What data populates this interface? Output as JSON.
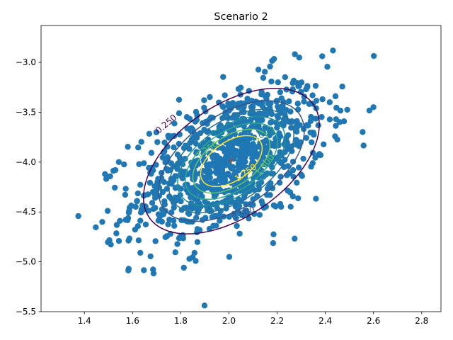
{
  "chart_data": {
    "type": "scatter",
    "title": "Scenario 2",
    "xlabel": "",
    "ylabel": "",
    "xlim": [
      1.22,
      2.88
    ],
    "ylim": [
      -5.5,
      -2.63
    ],
    "x_ticks": [
      1.4,
      1.6,
      1.8,
      2.0,
      2.2,
      2.4,
      2.6,
      2.8
    ],
    "x_tick_labels": [
      "1.4",
      "1.6",
      "1.8",
      "2.0",
      "2.2",
      "2.4",
      "2.6",
      "2.8"
    ],
    "y_ticks": [
      -5.5,
      -5.0,
      -4.5,
      -4.0,
      -3.5,
      -3.0
    ],
    "y_tick_labels": [
      "−5.5",
      "−5.0",
      "−4.5",
      "−4.0",
      "−3.5",
      "−3.0"
    ],
    "grid": false,
    "scatter": {
      "color": "#1f77b4",
      "distribution": {
        "mean": [
          2.0,
          -4.0
        ],
        "std": [
          0.2,
          0.4
        ],
        "correlation": 0.5,
        "count": 1000
      }
    },
    "mean_marker": {
      "x": 2.01,
      "y": -3.99,
      "symbol": "+",
      "color": "#d62728"
    },
    "contours": {
      "center": [
        2.01,
        -3.99
      ],
      "std": [
        0.2,
        0.4
      ],
      "correlation": 0.5,
      "levels": [
        {
          "value": 0.25,
          "label": "0.250",
          "color": "#440154"
        },
        {
          "value": 0.5,
          "label": "0.500",
          "color": "#3b528b"
        },
        {
          "value": 0.75,
          "label": "0.750",
          "color": "#2c728e"
        },
        {
          "value": 1.0,
          "label": "1.000",
          "color": "#21918c"
        },
        {
          "value": 1.25,
          "label": "1.250",
          "color": "#28ae80"
        },
        {
          "value": 1.5,
          "label": "1.500",
          "color": "#5ec962"
        },
        {
          "value": 1.75,
          "label": "1.750",
          "color": "#fde725"
        }
      ],
      "visible_labels": [
        {
          "text": "0.250",
          "x": 1.74,
          "y": -3.62,
          "color": "#440154",
          "angle": -40
        },
        {
          "text": "0.500",
          "x": 2.06,
          "y": -4.52,
          "color": "#3b528b",
          "angle": -20
        },
        {
          "text": "1.000",
          "x": 2.14,
          "y": -3.73,
          "color": "#21918c",
          "angle": -20
        },
        {
          "text": "1.250",
          "x": 1.91,
          "y": -3.88,
          "color": "#5ec962",
          "angle": -35
        },
        {
          "text": "1.500",
          "x": 2.15,
          "y": -4.03,
          "color": "#5ec962",
          "angle": -50
        },
        {
          "text": "1.750",
          "x": 2.07,
          "y": -4.11,
          "color": "#fde725",
          "angle": -35
        }
      ]
    }
  }
}
